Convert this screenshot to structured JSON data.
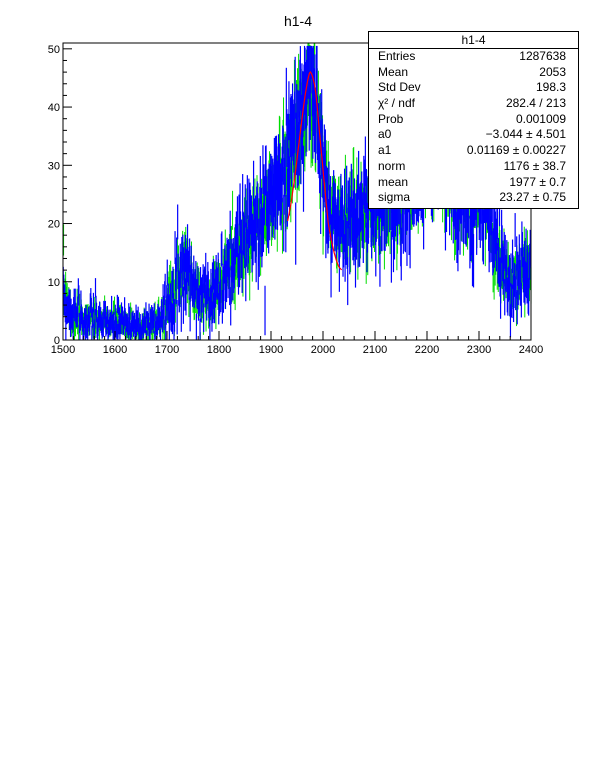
{
  "chart_data": {
    "type": "histogram",
    "title": "h1-4",
    "xlabel": "",
    "ylabel": "",
    "xlim": [
      1500,
      2400
    ],
    "ylim": [
      0,
      51
    ],
    "x_ticks": [
      "1500",
      "1600",
      "1700",
      "1800",
      "1900",
      "2000",
      "2100",
      "2200",
      "2300",
      "2400"
    ],
    "y_ticks": [
      "0",
      "10",
      "20",
      "30",
      "40",
      "50"
    ],
    "grid": false,
    "colors": {
      "histogram": "#0000ff",
      "fit_band": "#00dd00",
      "fit_peak": "#ff0000"
    },
    "profile": {
      "x": [
        1500,
        1510,
        1520,
        1540,
        1560,
        1580,
        1600,
        1620,
        1640,
        1660,
        1680,
        1700,
        1720,
        1735,
        1750,
        1760,
        1780,
        1800,
        1820,
        1840,
        1860,
        1880,
        1900,
        1920,
        1940,
        1960,
        1975,
        1985,
        1995,
        2010,
        2030,
        2050,
        2075,
        2100,
        2130,
        2160,
        2180,
        2200,
        2215,
        2230,
        2250,
        2265,
        2280,
        2300,
        2320,
        2340,
        2360,
        2380,
        2400
      ],
      "y": [
        9,
        6,
        4,
        3.5,
        3.5,
        3,
        3,
        3,
        2.5,
        2.5,
        3,
        6,
        11,
        13,
        9,
        7,
        8,
        9,
        13,
        16,
        18,
        21,
        24,
        28,
        33,
        39,
        44,
        41,
        32,
        22,
        20,
        21,
        22,
        23,
        24,
        26,
        28,
        33,
        37,
        32,
        26,
        22,
        25,
        27,
        20,
        14,
        10,
        11,
        12
      ]
    },
    "fit_peak": {
      "center": 1977,
      "sigma": 23.27
    }
  },
  "stats": {
    "title": "h1-4",
    "rows": [
      {
        "key": "Entries",
        "value": "1287638"
      },
      {
        "key": "Mean",
        "value": "2053"
      },
      {
        "key": "Std Dev",
        "value": "198.3"
      },
      {
        "key": "χ² / ndf",
        "value": "282.4 / 213"
      },
      {
        "key": "Prob",
        "value": "0.001009"
      },
      {
        "key": "a0",
        "value": "−3.044 ± 4.501"
      },
      {
        "key": "a1",
        "value": "0.01169 ± 0.00227"
      },
      {
        "key": "norm",
        "value": "1176 ± 38.7"
      },
      {
        "key": "mean",
        "value": "1977 ± 0.7"
      },
      {
        "key": "sigma",
        "value": "23.27 ± 0.75"
      }
    ]
  }
}
